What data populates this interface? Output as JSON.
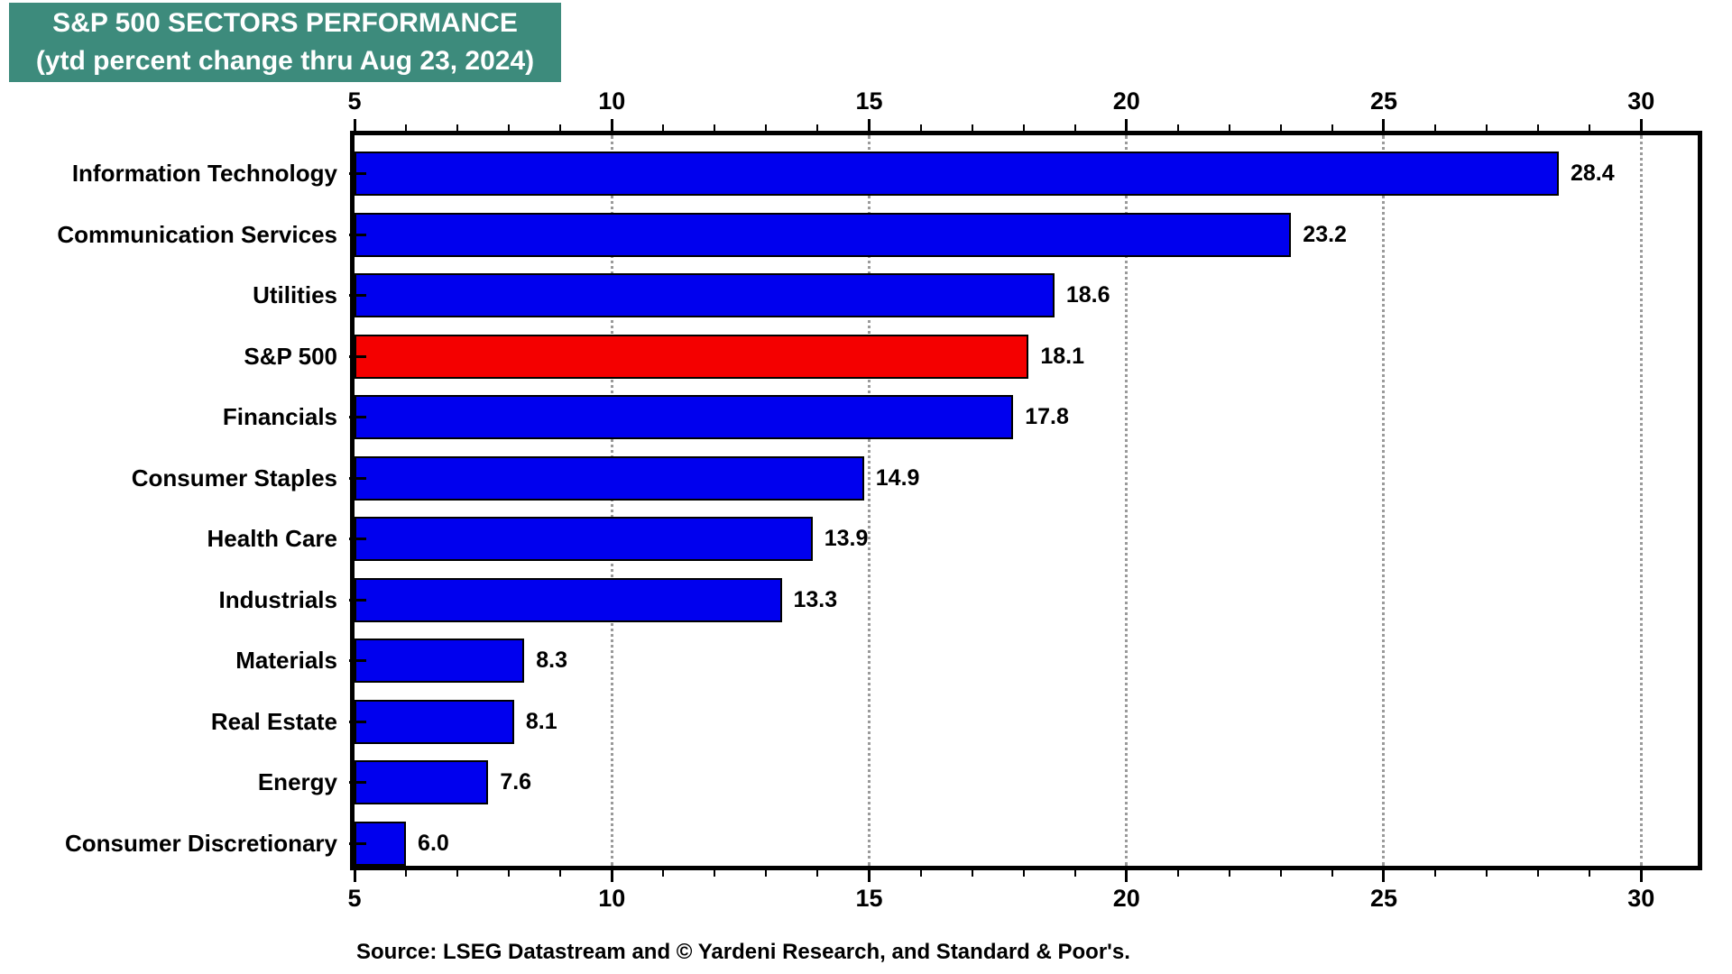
{
  "title_box": {
    "line1": "S&P 500 SECTORS PERFORMANCE",
    "line2": "(ytd percent change thru Aug 23, 2024)",
    "bg_color": "#3d8b7c",
    "text_color": "#ffffff"
  },
  "source_note": "Source: LSEG Datastream and © Yardeni Research, and Standard & Poor's.",
  "colors": {
    "bar_blue": "#0000ee",
    "bar_red": "#f40000",
    "bar_border": "#000000",
    "gridline": "#9a9a9a",
    "axis": "#000000",
    "text": "#000000"
  },
  "chart_data": {
    "type": "bar",
    "orientation": "horizontal",
    "title": "S&P 500 SECTORS PERFORMANCE",
    "subtitle": "(ytd percent change thru Aug 23, 2024)",
    "categories": [
      "Information Technology",
      "Communication Services",
      "Utilities",
      "S&P 500",
      "Financials",
      "Consumer Staples",
      "Health Care",
      "Industrials",
      "Materials",
      "Real Estate",
      "Energy",
      "Consumer Discretionary"
    ],
    "values": [
      28.4,
      23.2,
      18.6,
      18.1,
      17.8,
      14.9,
      13.9,
      13.3,
      8.3,
      8.1,
      7.6,
      6.0
    ],
    "value_labels": [
      "28.4",
      "23.2",
      "18.6",
      "18.1",
      "17.8",
      "14.9",
      "13.9",
      "13.3",
      "8.3",
      "8.1",
      "7.6",
      "6.0"
    ],
    "bar_colors": [
      "blue",
      "blue",
      "blue",
      "red",
      "blue",
      "blue",
      "blue",
      "blue",
      "blue",
      "blue",
      "blue",
      "blue"
    ],
    "highlight_category": "S&P 500",
    "units": "percent",
    "x_axis": {
      "min": 5,
      "max": 31.1,
      "major_ticks": [
        5,
        10,
        15,
        20,
        25,
        30
      ],
      "minor_tick_step": 1,
      "gridlines": [
        10,
        15,
        20,
        25,
        30
      ],
      "grid_style": "dotted",
      "ticks_position": "top-and-bottom"
    },
    "xlabel": "",
    "ylabel": "",
    "legend": "none"
  }
}
